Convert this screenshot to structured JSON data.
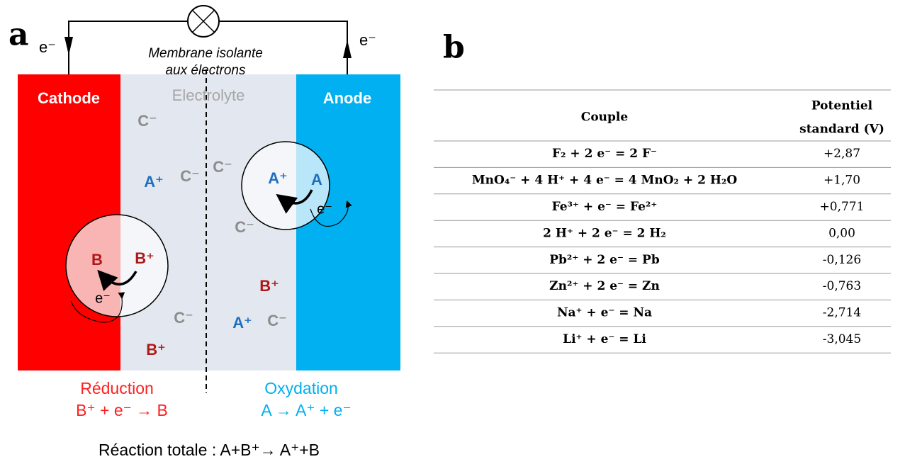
{
  "panel_a": {
    "label": "a",
    "electron_left": "e⁻",
    "electron_right": "e⁻",
    "membrane": [
      "Membrane isolante",
      "aux électrons"
    ],
    "cathode": "Cathode",
    "electrolyte": "Electrolyte",
    "anode": "Anode",
    "ions": [
      "C⁻",
      "A⁺",
      "C⁻",
      "C⁻",
      "C⁻",
      "B⁺",
      "A⁺",
      "C⁻",
      "C⁻",
      "B⁺"
    ],
    "anode_particle": {
      "ion": "A⁺",
      "atom": "A",
      "electron": "e⁻"
    },
    "cathode_particle": {
      "atom": "B",
      "ion": "B⁺",
      "electron": "e⁻"
    },
    "reduction": {
      "title": "Réduction",
      "equation": "B⁺ + e⁻ → B"
    },
    "oxydation": {
      "title": "Oxydation",
      "equation": "A → A⁺ + e⁻"
    },
    "total": "Réaction totale : A+B⁺→ A⁺+B"
  },
  "panel_b": {
    "label": "b",
    "table": {
      "header": {
        "couple": "Couple",
        "potential": [
          "Potentiel",
          "standard (V)"
        ]
      },
      "rows": [
        [
          "F₂ + 2 e⁻ = 2 F⁻",
          "+2,87"
        ],
        [
          "MnO₄⁻ + 4 H⁺ + 4 e⁻ = 4 MnO₂ + 2 H₂O",
          "+1,70"
        ],
        [
          "Fe³⁺ + e⁻ = Fe²⁺",
          "+0,771"
        ],
        [
          "2 H⁺ + 2 e⁻ = 2 H₂",
          "0,00"
        ],
        [
          "Pb²⁺ + 2 e⁻ =  Pb",
          "-0,126"
        ],
        [
          "Zn²⁺ + 2 e⁻ = Zn",
          "-0,763"
        ],
        [
          "Na⁺ + e⁻ = Na",
          "-2,714"
        ],
        [
          "Li⁺ + e⁻ = Li",
          "-3,045"
        ]
      ]
    }
  }
}
